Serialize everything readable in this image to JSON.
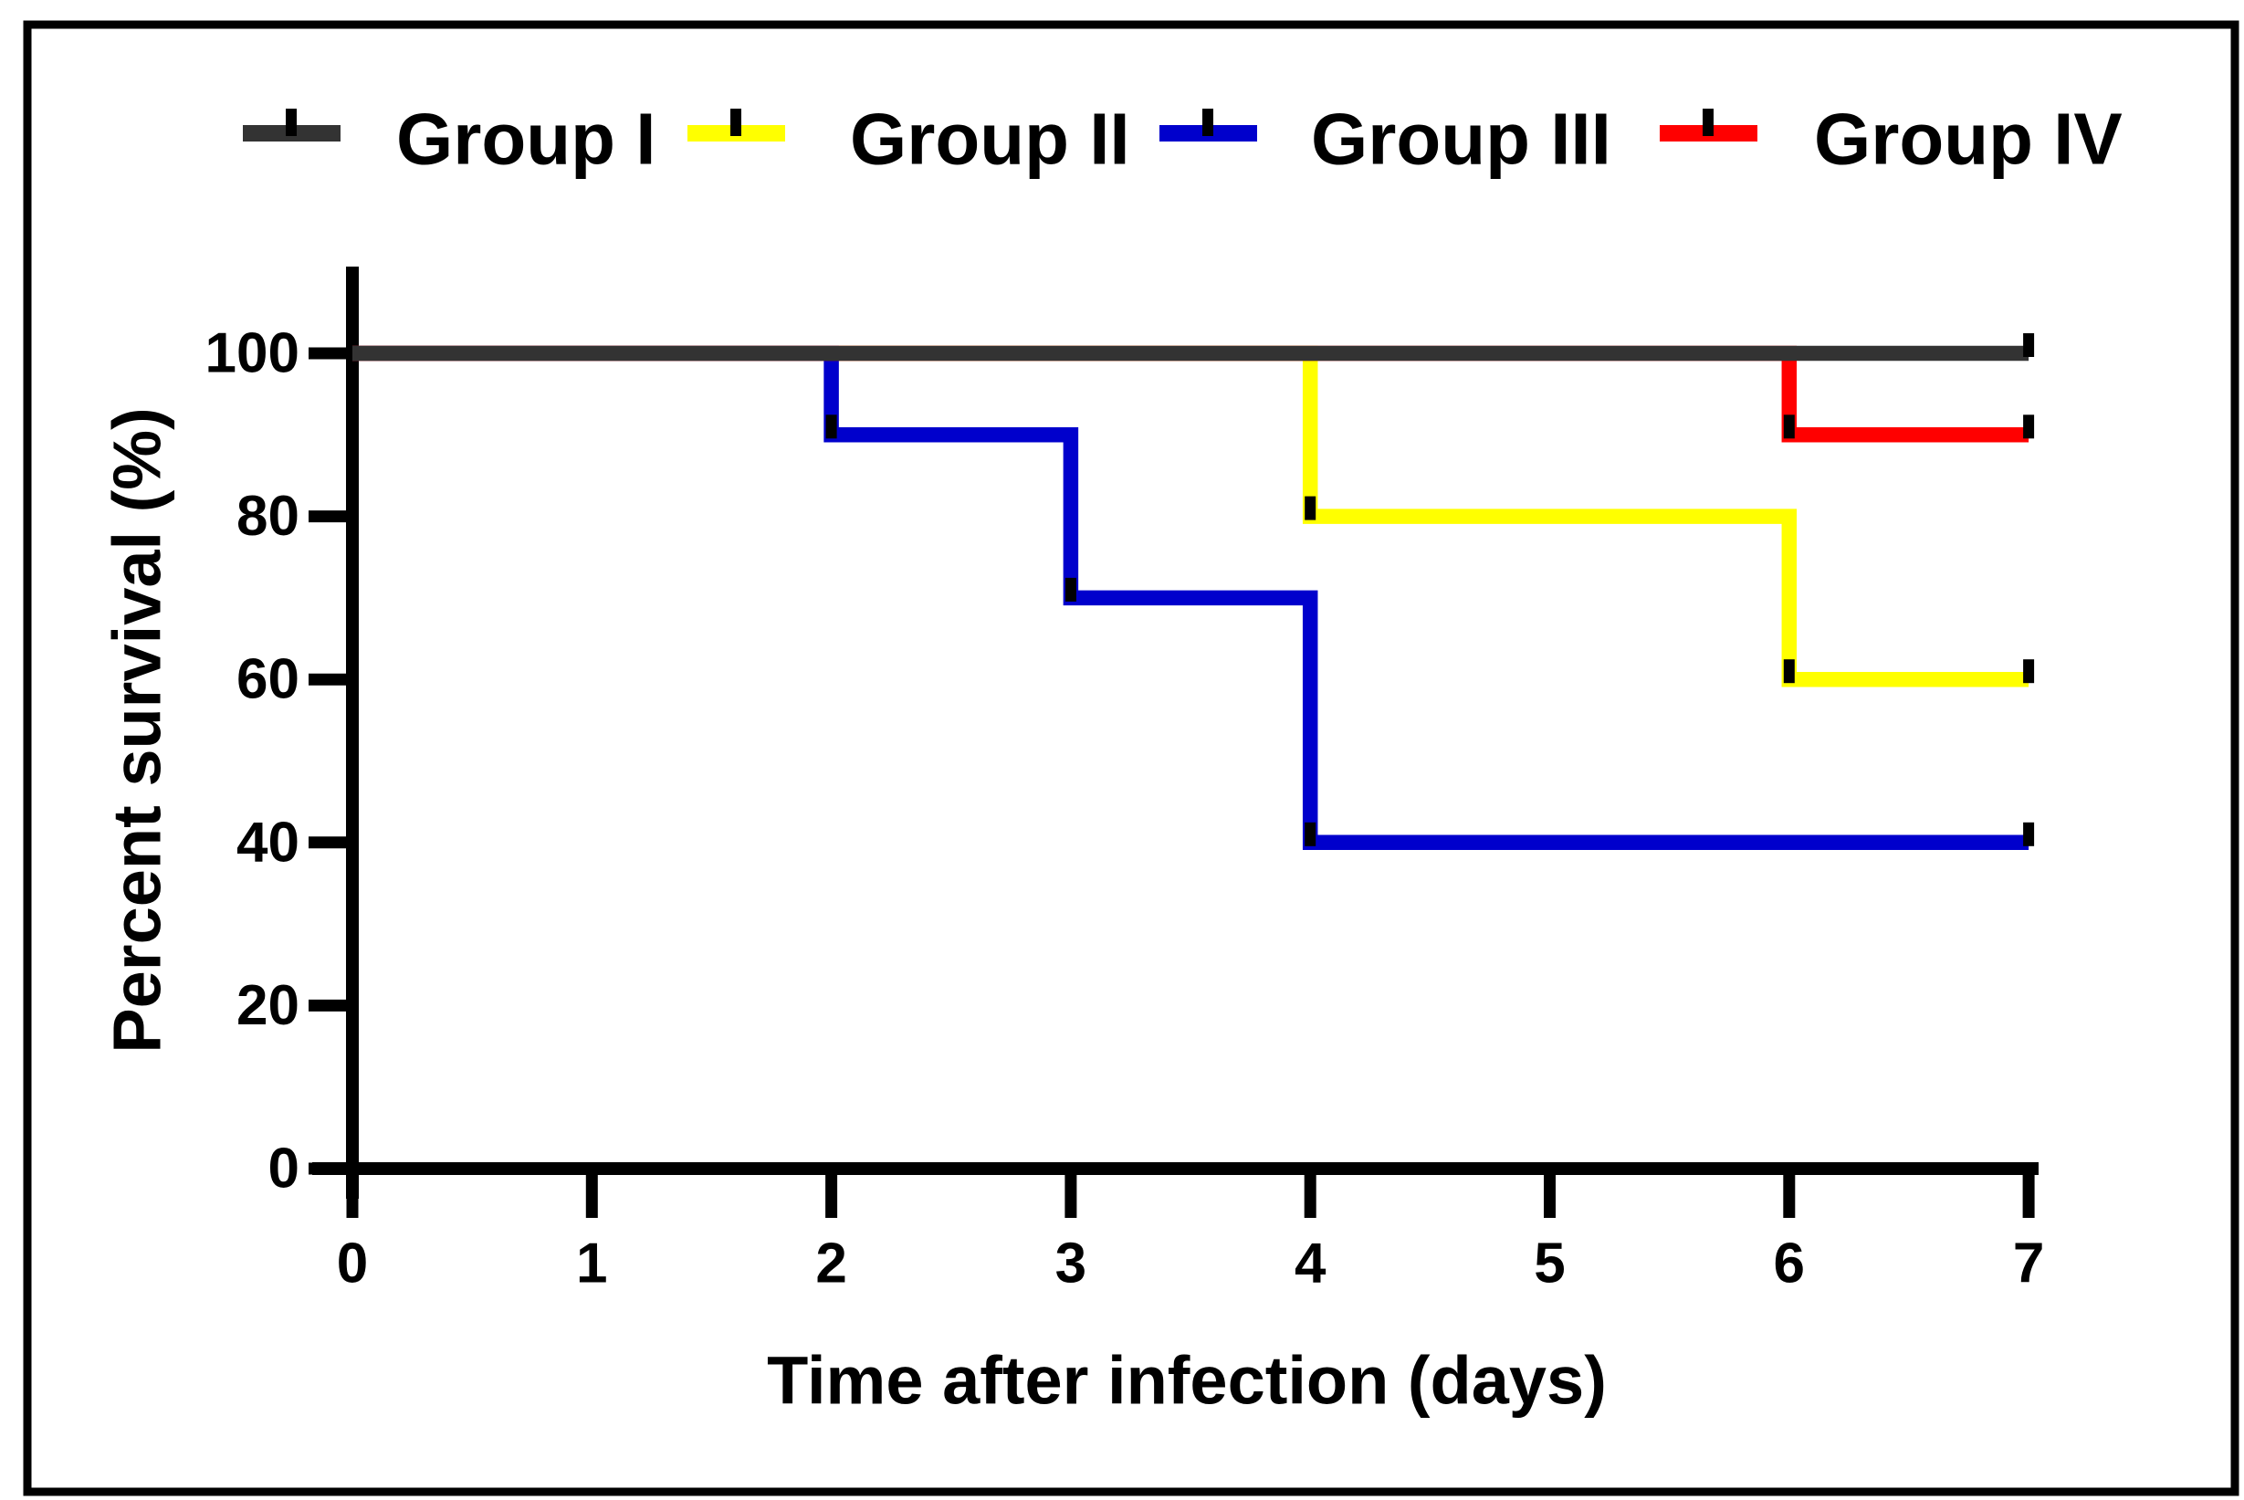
{
  "figure": {
    "background_color": "#ffffff",
    "border_color": "#000000"
  },
  "chart_data": {
    "type": "line",
    "subtype": "kaplan-meier-step-survival",
    "title": "",
    "xlabel": "Time after infection (days)",
    "ylabel": "Percent survival (%)",
    "xlim": [
      0,
      7
    ],
    "ylim": [
      0,
      100
    ],
    "x_ticks": [
      0,
      1,
      2,
      3,
      4,
      5,
      6,
      7
    ],
    "y_ticks": [
      0,
      20,
      40,
      60,
      80,
      100
    ],
    "grid": false,
    "legend_position": "top",
    "event_marker_color": "#000000",
    "axis_color": "#000000",
    "series": [
      {
        "name": "Group I",
        "color": "#333333",
        "z": 1,
        "points": [
          [
            0,
            100
          ],
          [
            7,
            100
          ]
        ],
        "event_markers": [
          [
            7,
            100
          ]
        ]
      },
      {
        "name": "Group II",
        "color": "#FFFF00",
        "z": 0,
        "points": [
          [
            0,
            100
          ],
          [
            4,
            100
          ],
          [
            4,
            80
          ],
          [
            6,
            80
          ],
          [
            6,
            60
          ],
          [
            7,
            60
          ]
        ],
        "event_markers": [
          [
            4,
            80
          ],
          [
            6,
            60
          ],
          [
            7,
            60
          ]
        ]
      },
      {
        "name": "Group III",
        "color": "#0000CC",
        "z": 0,
        "points": [
          [
            0,
            100
          ],
          [
            2,
            100
          ],
          [
            2,
            90
          ],
          [
            3,
            90
          ],
          [
            3,
            70
          ],
          [
            4,
            70
          ],
          [
            4,
            40
          ],
          [
            7,
            40
          ]
        ],
        "event_markers": [
          [
            2,
            90
          ],
          [
            3,
            70
          ],
          [
            4,
            40
          ],
          [
            7,
            40
          ]
        ]
      },
      {
        "name": "Group IV",
        "color": "#FF0000",
        "z": 0,
        "points": [
          [
            0,
            100
          ],
          [
            6,
            100
          ],
          [
            6,
            90
          ],
          [
            7,
            90
          ]
        ],
        "event_markers": [
          [
            6,
            90
          ],
          [
            7,
            90
          ]
        ]
      }
    ]
  }
}
